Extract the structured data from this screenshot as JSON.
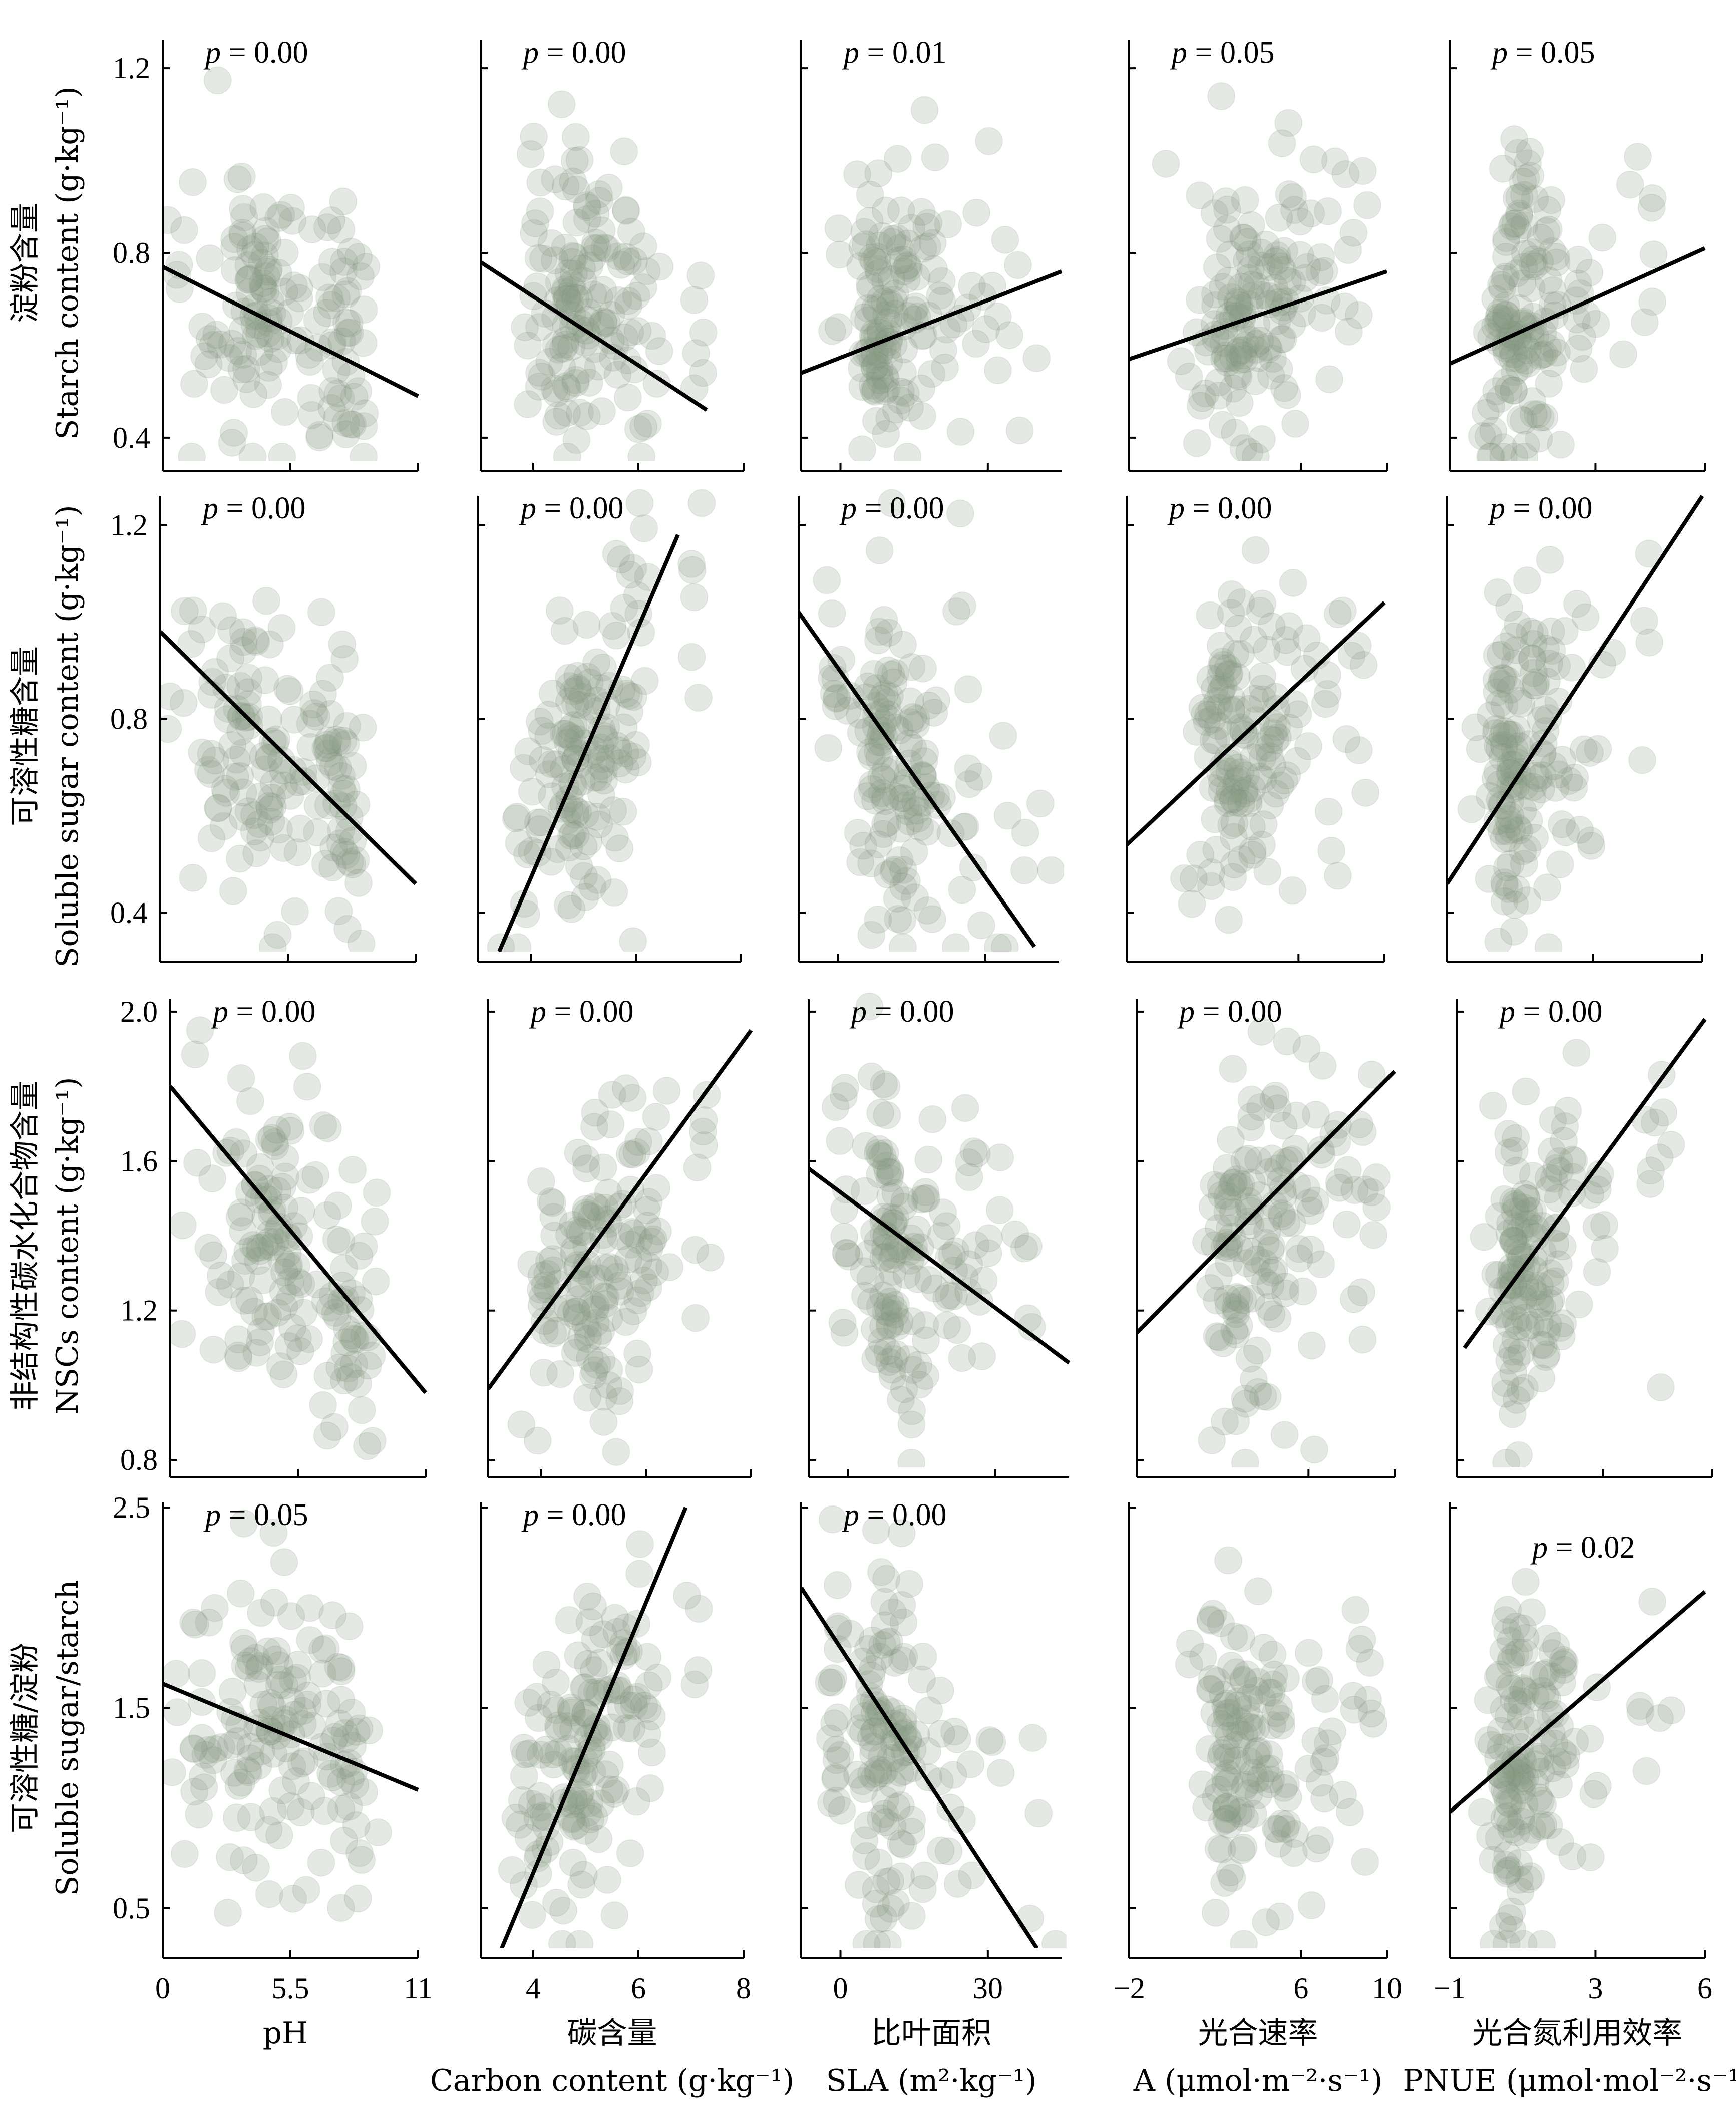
{
  "chart_data": {
    "type": "scatter",
    "layout": "4 rows x 5 columns",
    "columns": [
      {
        "key": "pH",
        "xlabel_cn": "",
        "xlabel_en": "pH",
        "xlim": [
          0,
          11
        ],
        "xticks": [
          0,
          5.5,
          11
        ]
      },
      {
        "key": "carbon",
        "xlabel_cn": "碳含量",
        "xlabel_en": "Carbon content (g·kg⁻¹)",
        "xlim": [
          3,
          8
        ],
        "xticks": [
          4,
          6,
          8
        ]
      },
      {
        "key": "sla",
        "xlabel_cn": "比叶面积",
        "xlabel_en": "SLA (m²·kg⁻¹)",
        "xlim": [
          -8,
          45
        ],
        "xticks": [
          0,
          30
        ]
      },
      {
        "key": "A",
        "xlabel_cn": "光合速率",
        "xlabel_en": "A (μmol·m⁻²·s⁻¹)",
        "xlim": [
          -2,
          10
        ],
        "xticks": [
          -2,
          6,
          10
        ]
      },
      {
        "key": "pnue",
        "xlabel_cn": "光合氮利用效率",
        "xlabel_en": "PNUE (μmol·mol⁻²·s⁻¹)",
        "xlim": [
          -1,
          6
        ],
        "xticks": [
          -1,
          3,
          6
        ]
      }
    ],
    "rows": [
      {
        "key": "starch",
        "ylabel_cn": "淀粉含量",
        "ylabel_en": "Starch content (g·kg⁻¹)",
        "ylim": [
          0.35,
          1.25
        ],
        "yticks": [
          0.4,
          0.8,
          1.2
        ]
      },
      {
        "key": "sugar",
        "ylabel_cn": "可溶性糖含量",
        "ylabel_en": "Soluble sugar content (g·kg⁻¹)",
        "ylim": [
          0.32,
          1.25
        ],
        "yticks": [
          0.4,
          0.8,
          1.2
        ]
      },
      {
        "key": "nsc",
        "ylabel_cn": "非结构性碳水化合物含量",
        "ylabel_en": "NSCs content (g·kg⁻¹)",
        "ylim": [
          0.78,
          2.02
        ],
        "yticks": [
          0.8,
          1.2,
          1.6,
          2.0
        ]
      },
      {
        "key": "ratio",
        "ylabel_cn": "可溶性糖/淀粉",
        "ylabel_en": "Soluble sugar/starch",
        "ylim": [
          0.3,
          2.5
        ],
        "yticks": [
          0.5,
          1.5,
          2.5
        ]
      }
    ],
    "panels": [
      [
        {
          "p": "0.00",
          "fit": [
            [
              0,
              0.77
            ],
            [
              11,
              0.49
            ]
          ]
        },
        {
          "p": "0.00",
          "fit": [
            [
              3,
              0.78
            ],
            [
              7.3,
              0.46
            ]
          ]
        },
        {
          "p": "0.01",
          "fit": [
            [
              -8,
              0.54
            ],
            [
              45,
              0.76
            ]
          ]
        },
        {
          "p": "0.05",
          "fit": [
            [
              -2,
              0.57
            ],
            [
              10,
              0.76
            ]
          ]
        },
        {
          "p": "0.05",
          "fit": [
            [
              -1,
              0.56
            ],
            [
              6,
              0.81
            ]
          ]
        }
      ],
      [
        {
          "p": "0.00",
          "fit": [
            [
              0,
              0.98
            ],
            [
              11,
              0.46
            ]
          ]
        },
        {
          "p": "0.00",
          "fit": [
            [
              3.4,
              0.32
            ],
            [
              6.8,
              1.18
            ]
          ]
        },
        {
          "p": "0.00",
          "fit": [
            [
              -8,
              1.02
            ],
            [
              40,
              0.33
            ]
          ]
        },
        {
          "p": "0.00",
          "fit": [
            [
              -2,
              0.54
            ],
            [
              10,
              1.04
            ]
          ]
        },
        {
          "p": "0.00",
          "fit": [
            [
              -1,
              0.46
            ],
            [
              6,
              1.26
            ]
          ]
        }
      ],
      [
        {
          "p": "0.00",
          "fit": [
            [
              0,
              1.8
            ],
            [
              11,
              0.98
            ]
          ]
        },
        {
          "p": "0.00",
          "fit": [
            [
              3,
              0.99
            ],
            [
              8,
              1.95
            ]
          ]
        },
        {
          "p": "0.00",
          "fit": [
            [
              -8,
              1.58
            ],
            [
              45,
              1.06
            ]
          ]
        },
        {
          "p": "0.00",
          "fit": [
            [
              -2,
              1.14
            ],
            [
              10,
              1.84
            ]
          ]
        },
        {
          "p": "0.00",
          "fit": [
            [
              -0.8,
              1.1
            ],
            [
              5.8,
              1.98
            ]
          ]
        }
      ],
      [
        {
          "p": "0.05",
          "fit": [
            [
              0,
              1.62
            ],
            [
              11,
              1.09
            ]
          ]
        },
        {
          "p": "0.00",
          "fit": [
            [
              3.4,
              0.3
            ],
            [
              6.9,
              2.5
            ]
          ]
        },
        {
          "p": "0.00",
          "fit": [
            [
              -8,
              2.1
            ],
            [
              40,
              0.3
            ]
          ]
        },
        {
          "p": "",
          "fit": []
        },
        {
          "p": "0.02",
          "fit": [
            [
              -1,
              0.98
            ],
            [
              6,
              2.08
            ]
          ]
        }
      ]
    ],
    "point_color": "#7d8f77",
    "line_color": "#000000",
    "notes": "Scatter points are semi-transparent circles; approximate clouds generated from estimated distributions."
  }
}
